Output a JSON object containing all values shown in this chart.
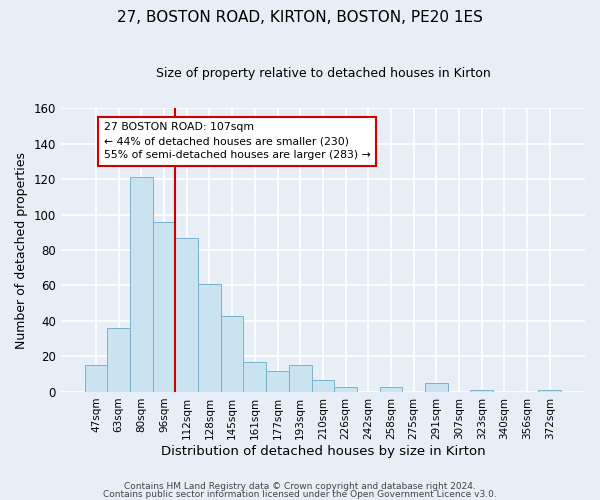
{
  "title": "27, BOSTON ROAD, KIRTON, BOSTON, PE20 1ES",
  "subtitle": "Size of property relative to detached houses in Kirton",
  "xlabel": "Distribution of detached houses by size in Kirton",
  "ylabel": "Number of detached properties",
  "bar_labels": [
    "47sqm",
    "63sqm",
    "80sqm",
    "96sqm",
    "112sqm",
    "128sqm",
    "145sqm",
    "161sqm",
    "177sqm",
    "193sqm",
    "210sqm",
    "226sqm",
    "242sqm",
    "258sqm",
    "275sqm",
    "291sqm",
    "307sqm",
    "323sqm",
    "340sqm",
    "356sqm",
    "372sqm"
  ],
  "bar_heights": [
    15,
    36,
    121,
    96,
    87,
    61,
    43,
    17,
    12,
    15,
    7,
    3,
    0,
    3,
    0,
    5,
    0,
    1,
    0,
    0,
    1
  ],
  "bar_color": "#c9e3f0",
  "bar_edge_color": "#7ab3cc",
  "ylim": [
    0,
    160
  ],
  "yticks": [
    0,
    20,
    40,
    60,
    80,
    100,
    120,
    140,
    160
  ],
  "vline_x": 3.5,
  "vline_color": "#cc0000",
  "annotation_line1": "27 BOSTON ROAD: 107sqm",
  "annotation_line2": "← 44% of detached houses are smaller (230)",
  "annotation_line3": "55% of semi-detached houses are larger (283) →",
  "footer_line1": "Contains HM Land Registry data © Crown copyright and database right 2024.",
  "footer_line2": "Contains public sector information licensed under the Open Government Licence v3.0.",
  "background_color": "#e8eef5",
  "plot_background_color": "#e8eef5",
  "grid_color": "#ffffff",
  "title_fontsize": 11,
  "subtitle_fontsize": 9
}
